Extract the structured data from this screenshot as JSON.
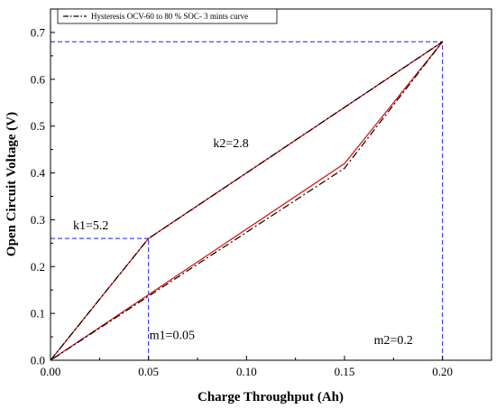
{
  "chart_data": {
    "type": "line",
    "xlabel": "Charge Throughput (Ah)",
    "ylabel": "Open Circuit Voltage (V)",
    "xlim": [
      0,
      0.225
    ],
    "ylim": [
      0,
      0.75
    ],
    "xticks": [
      "0.00",
      "0.05",
      "0.10",
      "0.15",
      "0.20"
    ],
    "xtick_values": [
      0,
      0.05,
      0.1,
      0.15,
      0.2
    ],
    "yticks": [
      "0.0",
      "0.1",
      "0.2",
      "0.3",
      "0.4",
      "0.5",
      "0.6",
      "0.7"
    ],
    "ytick_values": [
      0,
      0.1,
      0.2,
      0.3,
      0.4,
      0.5,
      0.6,
      0.7
    ],
    "legend_position": "top-left",
    "series": [
      {
        "name": "Hysteresis OCV-60 to 80 % SOC- 3 mints curve",
        "color": "#000000",
        "style": "dashdot",
        "x": [
          0,
          0.05,
          0.2,
          0.15,
          0
        ],
        "y": [
          0,
          0.26,
          0.68,
          0.41,
          0
        ]
      },
      {
        "color": "#e0191d",
        "style": "solid",
        "x": [
          0,
          0.05,
          0.2,
          0.15,
          0
        ],
        "y": [
          0,
          0.26,
          0.68,
          0.42,
          0
        ]
      }
    ],
    "reference_lines": [
      {
        "x": [
          0.05,
          0.05
        ],
        "y": [
          0,
          0.26
        ],
        "color": "#1a1aff"
      },
      {
        "x": [
          0,
          0.05
        ],
        "y": [
          0.26,
          0.26
        ],
        "color": "#1a1aff"
      },
      {
        "x": [
          0.2,
          0.2
        ],
        "y": [
          0,
          0.68
        ],
        "color": "#1a1aff"
      },
      {
        "x": [
          0,
          0.2
        ],
        "y": [
          0.68,
          0.68
        ],
        "color": "#1a1aff"
      }
    ],
    "annotations": [
      {
        "text": "k1=5.2",
        "x": 0.0115,
        "y": 0.28
      },
      {
        "text": "k2=2.8",
        "x": 0.083,
        "y": 0.455
      },
      {
        "text": "m1=0.05",
        "x": 0.0505,
        "y": 0.045
      },
      {
        "text": "m2=0.2",
        "x": 0.165,
        "y": 0.035
      }
    ]
  }
}
